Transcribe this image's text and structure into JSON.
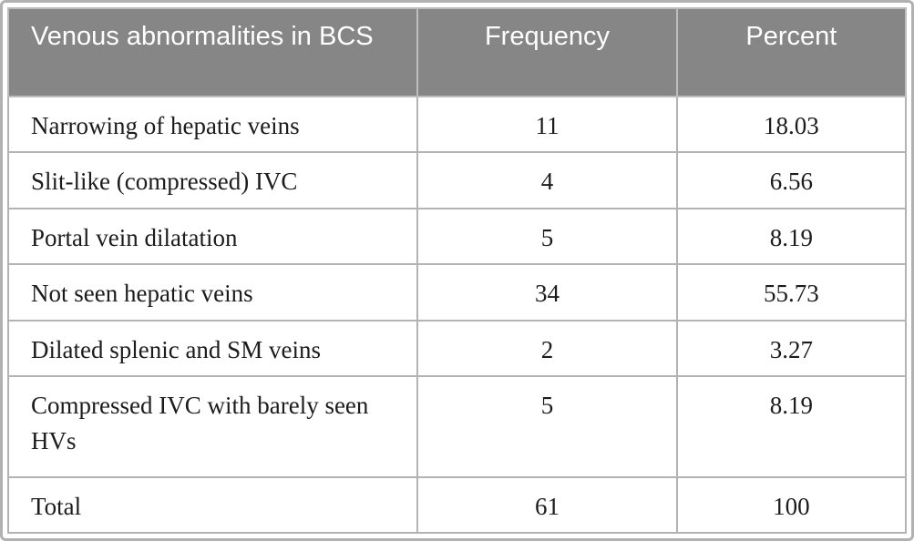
{
  "table": {
    "title": "Venous abnormalities in BCS",
    "columns": {
      "label_header": "Venous abnormalities in BCS",
      "frequency_header": "Frequency",
      "percent_header": "Percent"
    },
    "rows": [
      {
        "label": "Narrowing of hepatic veins",
        "frequency": "11",
        "percent": "18.03"
      },
      {
        "label": "Slit-like (compressed) IVC",
        "frequency": "4",
        "percent": "6.56"
      },
      {
        "label": "Portal vein dilatation",
        "frequency": "5",
        "percent": "8.19"
      },
      {
        "label": "Not seen hepatic veins",
        "frequency": "34",
        "percent": "55.73"
      },
      {
        "label": "Dilated splenic and SM veins",
        "frequency": "2",
        "percent": "3.27"
      },
      {
        "label": "Compressed IVC with barely seen HVs",
        "frequency": "5",
        "percent": "8.19"
      }
    ],
    "total_row": {
      "label": "Total",
      "frequency": "61",
      "percent": "100"
    }
  },
  "colors": {
    "header_background": "#868686",
    "header_text": "#ffffff",
    "grid_line": "#b3b3b3",
    "outer_frame": "#b1b1b1",
    "body_text": "#1c1c1c"
  },
  "chart_data": {
    "type": "table",
    "title": "Venous abnormalities in BCS",
    "categories": [
      "Narrowing of hepatic veins",
      "Slit-like (compressed) IVC",
      "Portal vein dilatation",
      "Not seen hepatic veins",
      "Dilated splenic and SM veins",
      "Compressed IVC with barely seen HVs"
    ],
    "series": [
      {
        "name": "Frequency",
        "values": [
          11,
          4,
          5,
          34,
          2,
          5
        ]
      },
      {
        "name": "Percent",
        "values": [
          18.03,
          6.56,
          8.19,
          55.73,
          3.27,
          8.19
        ]
      }
    ],
    "total": {
      "frequency": 61,
      "percent": 100
    }
  }
}
